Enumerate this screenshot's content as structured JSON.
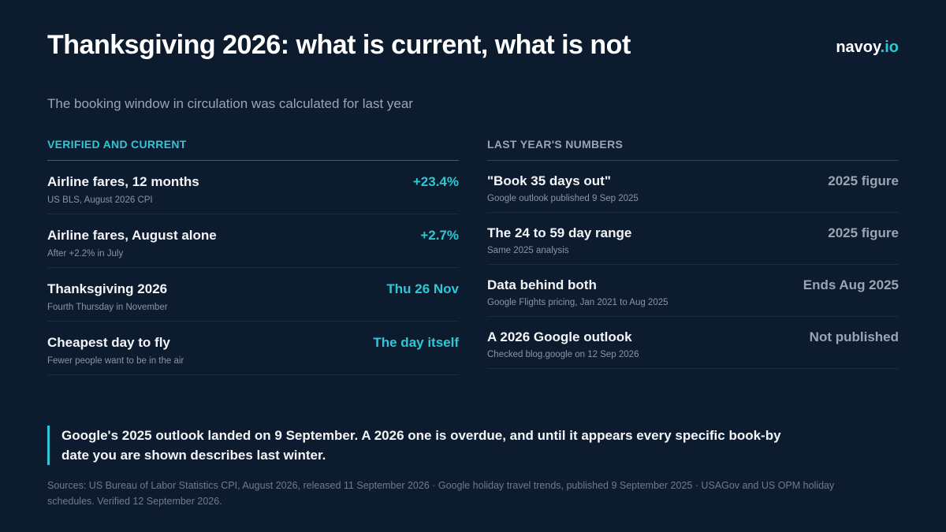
{
  "header": {
    "title": "Thanksgiving 2026: what is current, what is not",
    "subtitle": "The booking window in circulation was calculated for last year",
    "brand_name": "navoy",
    "brand_tld": ".io"
  },
  "left_column": {
    "heading": "VERIFIED AND CURRENT",
    "rows": [
      {
        "label": "Airline fares, 12 months",
        "note": "US BLS, August 2026 CPI",
        "value": "+23.4%"
      },
      {
        "label": "Airline fares, August alone",
        "note": "After +2.2% in July",
        "value": "+2.7%"
      },
      {
        "label": "Thanksgiving 2026",
        "note": "Fourth Thursday in November",
        "value": "Thu 26 Nov"
      },
      {
        "label": "Cheapest day to fly",
        "note": "Fewer people want to be in the air",
        "value": "The day itself"
      }
    ]
  },
  "right_column": {
    "heading": "LAST YEAR'S NUMBERS",
    "rows": [
      {
        "label": "\"Book 35 days out\"",
        "note": "Google outlook published 9 Sep 2025",
        "value": "2025 figure"
      },
      {
        "label": "The 24 to 59 day range",
        "note": "Same 2025 analysis",
        "value": "2025 figure"
      },
      {
        "label": "Data behind both",
        "note": "Google Flights pricing, Jan 2021 to Aug 2025",
        "value": "Ends Aug 2025"
      },
      {
        "label": "A 2026 Google outlook",
        "note": "Checked blog.google on 12 Sep 2026",
        "value": "Not published"
      }
    ]
  },
  "callout": {
    "text": "Google's 2025 outlook landed on 9 September. A 2026 one is overdue, and until it appears every specific book-by date you are shown describes last winter."
  },
  "footer": {
    "sources": "Sources: US Bureau of Labor Statistics CPI, August 2026, released 11 September 2026 · Google holiday travel trends, published 9 September 2025 · USAGov and US OPM holiday schedules. Verified 12 September 2026."
  },
  "colors": {
    "background": "#0c1b2e",
    "accent": "#2ec7d6",
    "muted": "#9aa5b3",
    "text": "#f3f5f8"
  }
}
